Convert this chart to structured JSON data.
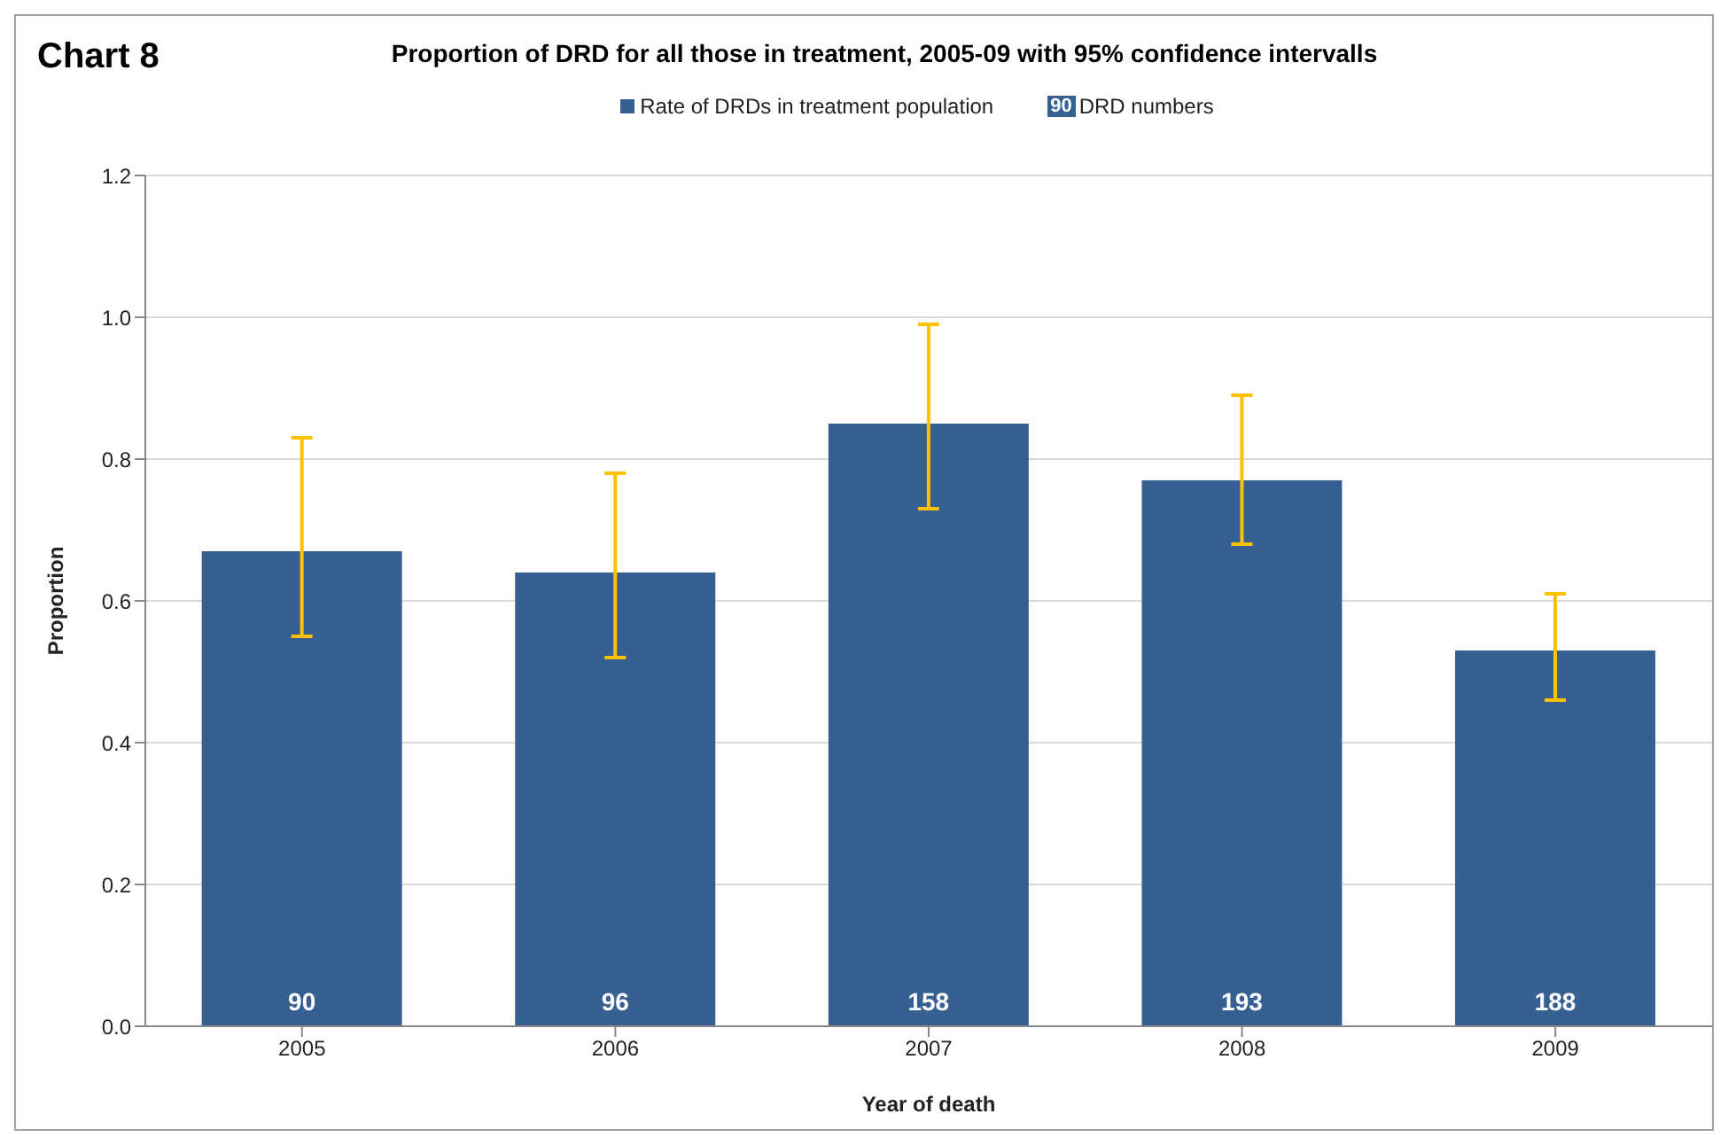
{
  "chart_data": {
    "type": "bar",
    "title": "Proportion of DRD for all those in treatment, 2005-09 with 95% confidence intervalls",
    "xlabel": "Year of death",
    "ylabel": "Proportion",
    "annotations": [
      "Chart 8",
      "DRD numbers",
      {
        "text": "90",
        "x": "2005",
        "y": 0
      },
      {
        "text": "96",
        "x": "2006",
        "y": 0
      },
      {
        "text": "158",
        "x": "2007",
        "y": 0
      },
      {
        "text": "193",
        "x": "2008",
        "y": 0
      },
      {
        "text": "188",
        "x": "2009",
        "y": 0
      }
    ],
    "categories": [
      "2005",
      "2006",
      "2007",
      "2008",
      "2009"
    ],
    "series": [
      {
        "name": "Rate of DRDs in treatment population",
        "color": "#376092",
        "values": [
          0.67,
          0.64,
          0.85,
          0.77,
          0.53
        ],
        "errors": [
          [
            0.55,
            0.83
          ],
          [
            0.52,
            0.78
          ],
          [
            0.73,
            0.99
          ],
          [
            0.68,
            0.89
          ],
          [
            0.46,
            0.61
          ]
        ]
      }
    ],
    "ylim": [
      0,
      1.2
    ],
    "yticks": [
      {
        "value": 0,
        "label": "0.0"
      },
      {
        "value": 0.2,
        "label": "0.2"
      },
      {
        "value": 0.4,
        "label": "0.4"
      },
      {
        "value": 0.6,
        "label": "0.6"
      },
      {
        "value": 0.8,
        "label": "0.8"
      },
      {
        "value": 1,
        "label": "1.0"
      },
      {
        "value": 1.2,
        "label": "1.2"
      }
    ],
    "grid": "y",
    "legend": "top"
  }
}
